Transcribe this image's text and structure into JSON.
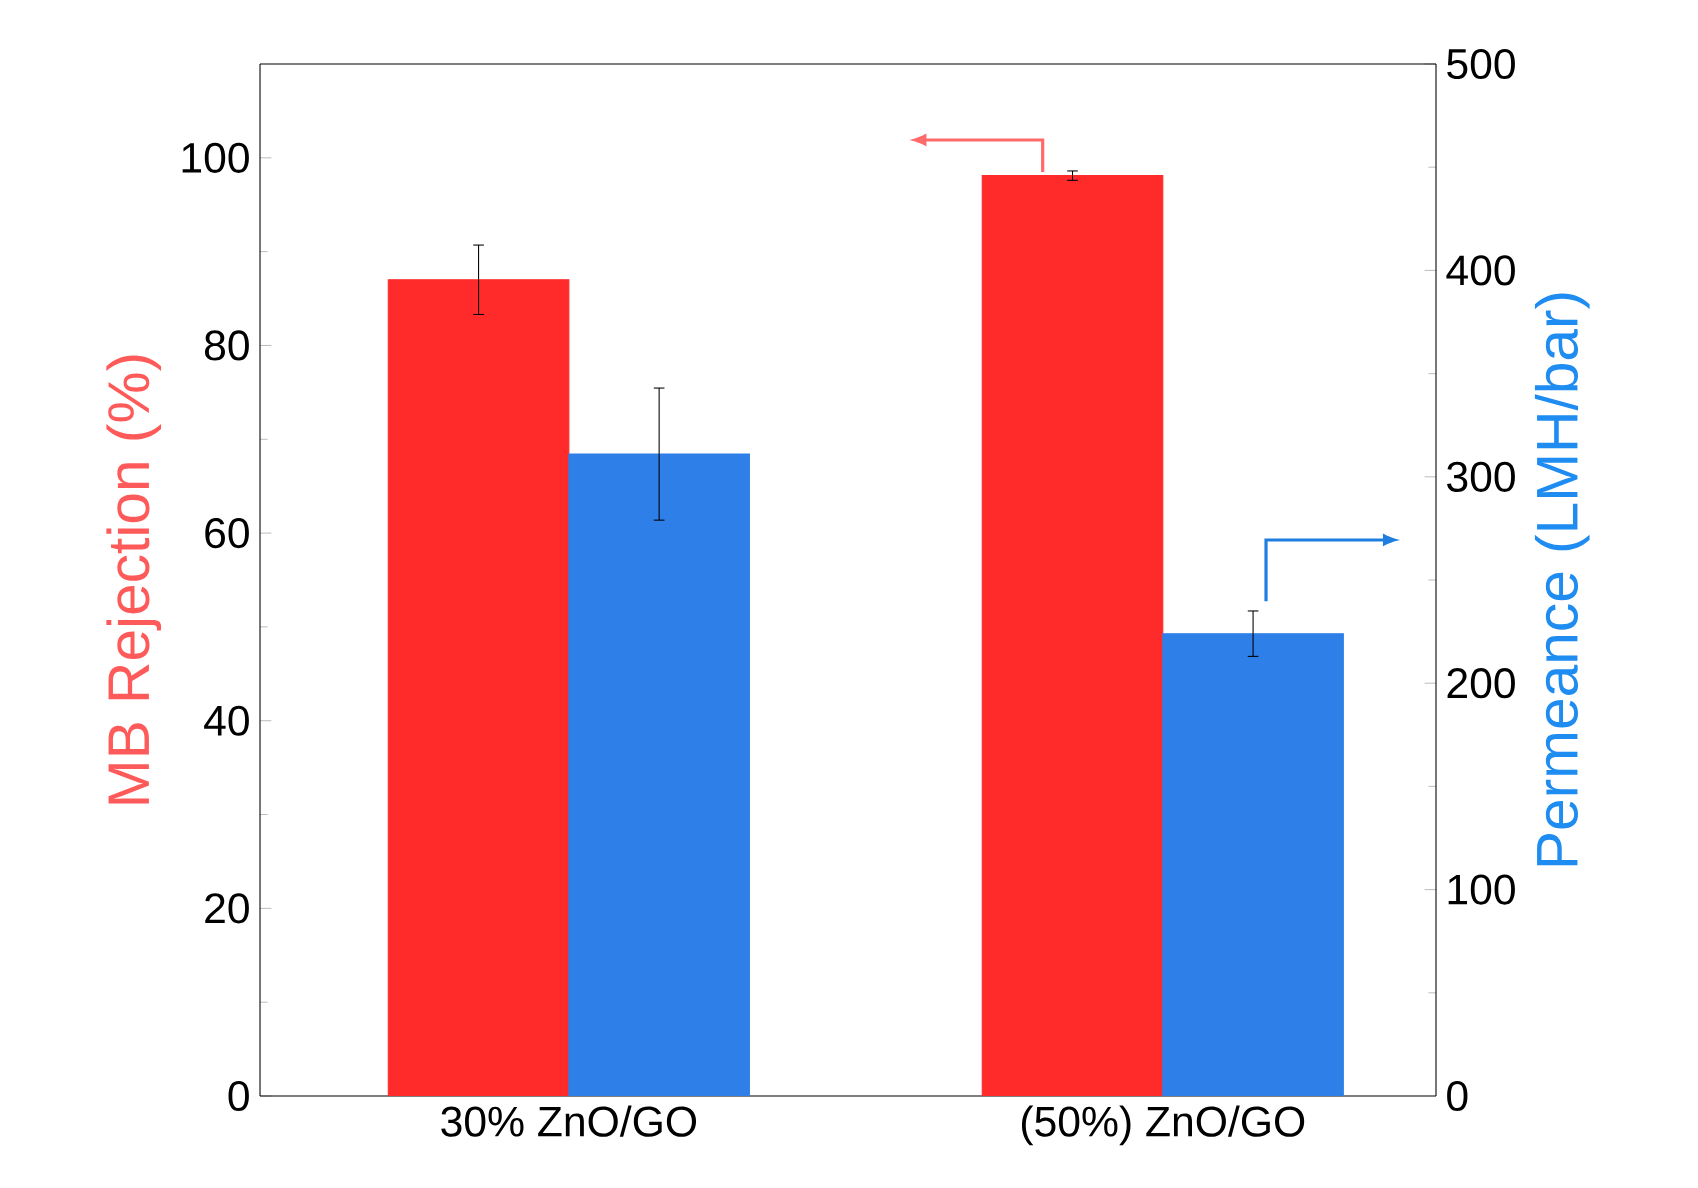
{
  "chart_data": {
    "type": "bar",
    "categories": [
      "30% ZnO/GO",
      "(50%) ZnO/GO"
    ],
    "ylabel": "MB Rejection (%)",
    "y2label": "Permeance (LMH/bar)",
    "ylim": [
      0,
      110
    ],
    "yticks": [
      0,
      20,
      40,
      60,
      80,
      100
    ],
    "y2lim": [
      0,
      500
    ],
    "y2ticks": [
      0,
      100,
      200,
      300,
      400,
      500
    ],
    "series": [
      {
        "color": "#ff2a2a",
        "values": [
          87.0,
          98.1
        ],
        "errors": [
          3.7,
          0.5
        ]
      },
      {
        "color": "#2f7fe8",
        "values": [
          311,
          224
        ],
        "errors": [
          32,
          11
        ],
        "axis": "y2"
      }
    ]
  }
}
